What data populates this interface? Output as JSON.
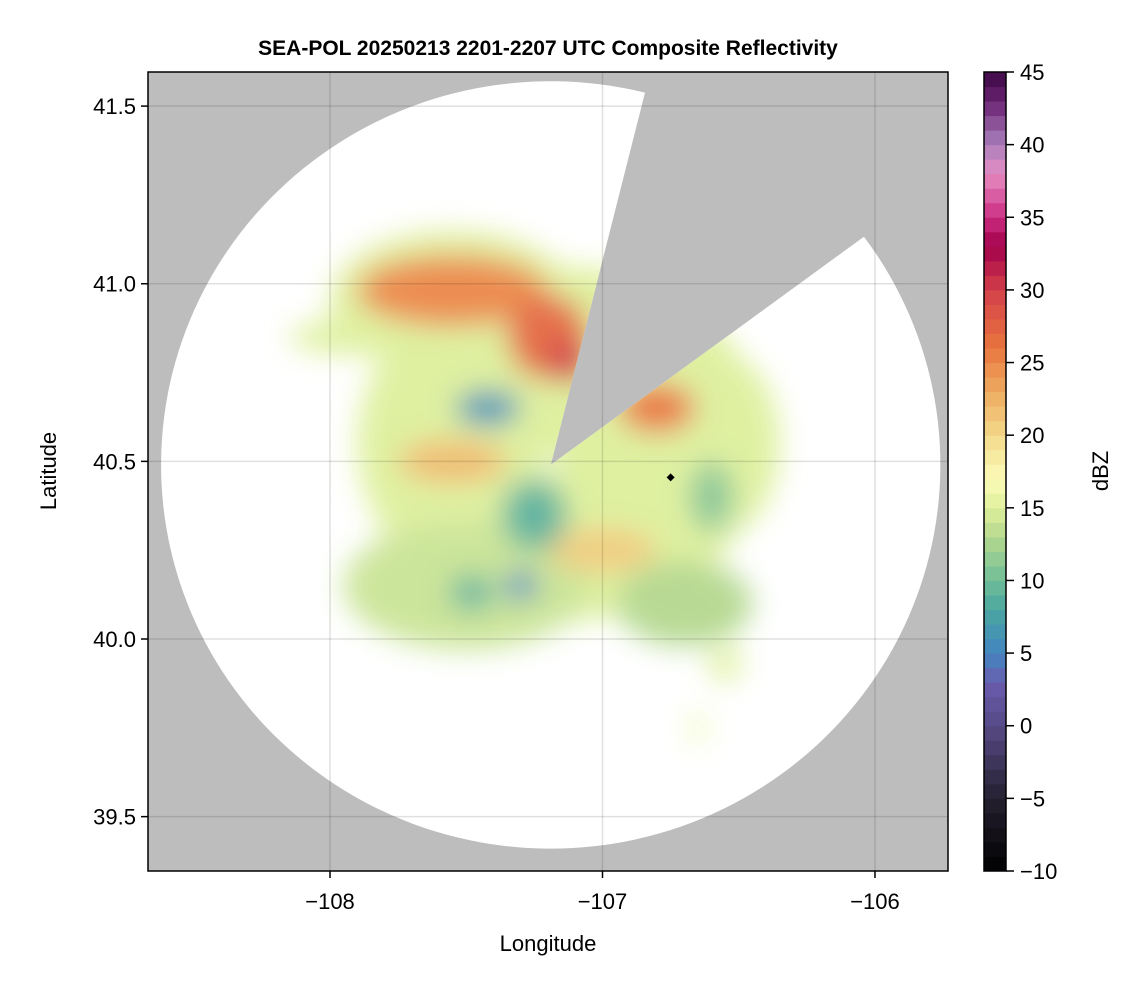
{
  "chart_data": {
    "type": "heatmap",
    "title": "SEA-POL 20250213 2201-2207 UTC Composite Reflectivity",
    "xlabel": "Longitude",
    "ylabel": "Latitude",
    "xlim": [
      -108.668,
      -105.732
    ],
    "ylim": [
      39.347,
      41.596
    ],
    "xticks": [
      -108,
      -107,
      -106
    ],
    "xtick_labels": [
      "−108",
      "−107",
      "−106"
    ],
    "yticks": [
      39.5,
      40.0,
      40.5,
      41.0,
      41.5
    ],
    "ytick_labels": [
      "39.5",
      "40.0",
      "40.5",
      "41.0",
      "41.5"
    ],
    "grid": true,
    "background_color": "#bdbdbd",
    "radar": {
      "center_lon": -107.19,
      "center_lat": 40.49,
      "range_lon_deg": 1.43,
      "range_lat_deg": 1.08,
      "blocked_azimuths_deg": [
        14,
        53.5
      ]
    },
    "marker": {
      "lon": -106.75,
      "lat": 40.455,
      "color": "#000000",
      "shape": "diamond"
    },
    "colorbar": {
      "label": "dBZ",
      "range": [
        -10,
        45
      ],
      "step": 1,
      "ticks": [
        -10,
        -5,
        0,
        5,
        10,
        15,
        20,
        25,
        30,
        35,
        40,
        45
      ],
      "tick_labels": [
        "−10",
        "−5",
        "0",
        "5",
        "10",
        "15",
        "20",
        "25",
        "30",
        "35",
        "40",
        "45"
      ],
      "color_stops": [
        [
          -10,
          "#000000"
        ],
        [
          -5,
          "#25202f"
        ],
        [
          0,
          "#574a86"
        ],
        [
          3,
          "#6a5cae"
        ],
        [
          5,
          "#4386c2"
        ],
        [
          8,
          "#4aa6a0"
        ],
        [
          10,
          "#70bd98"
        ],
        [
          13,
          "#b4d88e"
        ],
        [
          15,
          "#def09c"
        ],
        [
          17,
          "#fbfab8"
        ],
        [
          20,
          "#f3d98a"
        ],
        [
          23,
          "#eeab60"
        ],
        [
          26,
          "#e9763f"
        ],
        [
          30,
          "#d3404a"
        ],
        [
          33,
          "#a2004a"
        ],
        [
          35,
          "#cb2d82"
        ],
        [
          38,
          "#e68cc2"
        ],
        [
          40,
          "#ab80bd"
        ],
        [
          43,
          "#6a2372"
        ],
        [
          45,
          "#3b0843"
        ]
      ]
    },
    "echo_regions": [
      {
        "lon": -107.15,
        "lat": 40.55,
        "rlon": 0.75,
        "rlat": 0.5,
        "dbz": 15
      },
      {
        "lon": -107.55,
        "lat": 40.95,
        "rlon": 0.45,
        "rlat": 0.2,
        "dbz": 15
      },
      {
        "lon": -107.5,
        "lat": 40.15,
        "rlon": 0.45,
        "rlat": 0.18,
        "dbz": 14
      },
      {
        "lon": -106.7,
        "lat": 40.1,
        "rlon": 0.25,
        "rlat": 0.12,
        "dbz": 13
      },
      {
        "lon": -106.55,
        "lat": 40.55,
        "rlon": 0.2,
        "rlat": 0.25,
        "dbz": 15
      },
      {
        "lon": -107.9,
        "lat": 40.85,
        "rlon": 0.25,
        "rlat": 0.05,
        "dbz": 15
      },
      {
        "lon": -107.55,
        "lat": 40.98,
        "rlon": 0.35,
        "rlat": 0.1,
        "dbz": 25
      },
      {
        "lon": -107.2,
        "lat": 40.85,
        "rlon": 0.15,
        "rlat": 0.12,
        "dbz": 27
      },
      {
        "lon": -107.12,
        "lat": 40.78,
        "rlon": 0.08,
        "rlat": 0.06,
        "dbz": 30
      },
      {
        "lon": -107.42,
        "lat": 40.65,
        "rlon": 0.12,
        "rlat": 0.05,
        "dbz": 6
      },
      {
        "lon": -106.8,
        "lat": 40.65,
        "rlon": 0.14,
        "rlat": 0.07,
        "dbz": 26
      },
      {
        "lon": -107.55,
        "lat": 40.5,
        "rlon": 0.2,
        "rlat": 0.06,
        "dbz": 22
      },
      {
        "lon": -107.0,
        "lat": 40.25,
        "rlon": 0.2,
        "rlat": 0.06,
        "dbz": 21
      },
      {
        "lon": -107.48,
        "lat": 40.13,
        "rlon": 0.08,
        "rlat": 0.05,
        "dbz": 9
      },
      {
        "lon": -107.3,
        "lat": 40.15,
        "rlon": 0.06,
        "rlat": 0.04,
        "dbz": 5
      },
      {
        "lon": -107.25,
        "lat": 40.35,
        "rlon": 0.12,
        "rlat": 0.1,
        "dbz": 9
      },
      {
        "lon": -106.6,
        "lat": 40.4,
        "rlon": 0.08,
        "rlat": 0.1,
        "dbz": 11
      },
      {
        "lon": -106.55,
        "lat": 39.93,
        "rlon": 0.06,
        "rlat": 0.05,
        "dbz": 15
      },
      {
        "lon": -106.65,
        "lat": 39.75,
        "rlon": 0.03,
        "rlat": 0.04,
        "dbz": 16
      }
    ]
  }
}
